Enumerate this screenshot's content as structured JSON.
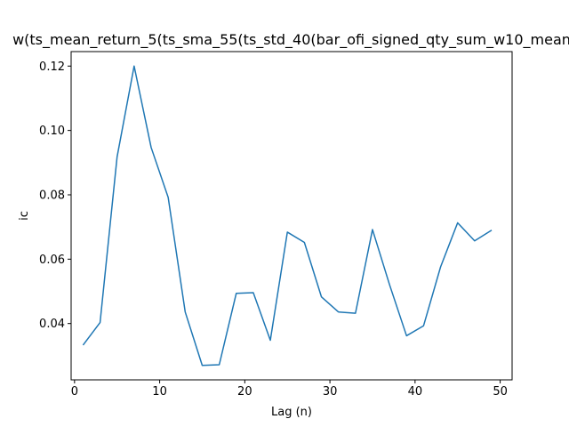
{
  "chart_data": {
    "type": "line",
    "title": "w(ts_mean_return_5(ts_sma_55(ts_std_40(bar_ofi_signed_qty_sum_w10_mean",
    "xlabel": "Lag (n)",
    "ylabel": "ic",
    "xlim": [
      -0.4,
      51.4
    ],
    "ylim": [
      0.0225,
      0.1245
    ],
    "xticks": [
      0,
      10,
      20,
      30,
      40,
      50
    ],
    "yticks": [
      0.04,
      0.06,
      0.08,
      0.1,
      0.12
    ],
    "ytick_labels": [
      "0.04",
      "0.06",
      "0.08",
      "0.10",
      "0.12"
    ],
    "grid": false,
    "series": [
      {
        "color": "#1f77b4",
        "x": [
          1,
          3,
          5,
          7,
          9,
          11,
          13,
          15,
          17,
          19,
          21,
          23,
          25,
          27,
          29,
          31,
          33,
          35,
          37,
          39,
          41,
          43,
          45,
          47,
          49
        ],
        "y": [
          0.0333,
          0.0403,
          0.0918,
          0.12,
          0.0947,
          0.0792,
          0.0436,
          0.027,
          0.0272,
          0.0494,
          0.0496,
          0.0348,
          0.0684,
          0.0652,
          0.0483,
          0.0436,
          0.0432,
          0.0692,
          0.0521,
          0.0362,
          0.0393,
          0.0576,
          0.0713,
          0.0657,
          0.069
        ]
      }
    ]
  }
}
